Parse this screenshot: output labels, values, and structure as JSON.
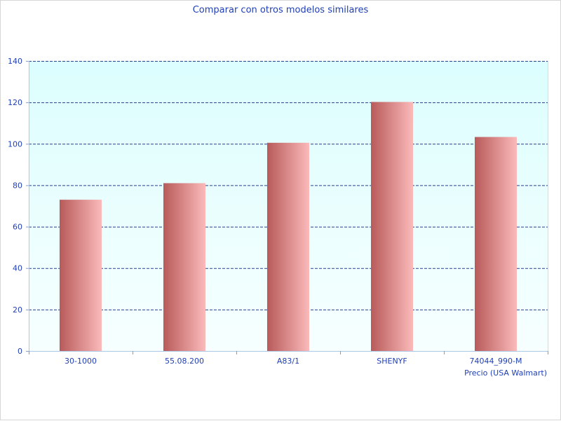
{
  "chart_data": {
    "type": "bar",
    "title": "Comparar con otros modelos similares",
    "xlabel": "Precio (USA Walmart)",
    "ylabel": "",
    "categories": [
      "30-1000",
      "55.08.200",
      "A83/1",
      "SHENYF",
      "74044_990-M"
    ],
    "values": [
      73,
      81,
      100.5,
      120.2,
      103.3
    ],
    "ylim": [
      0,
      140
    ],
    "yticks": [
      0,
      20,
      40,
      60,
      80,
      100,
      120,
      140
    ],
    "grid": true,
    "legend": "none",
    "colors": {
      "plot_background_top": "#dcfefe",
      "plot_background_bottom": "#f7ffff",
      "bar_dark": "#b85a5a",
      "bar_light": "#fbbaba",
      "grid": "#2a3f8f",
      "text": "#1f3fb5"
    }
  }
}
